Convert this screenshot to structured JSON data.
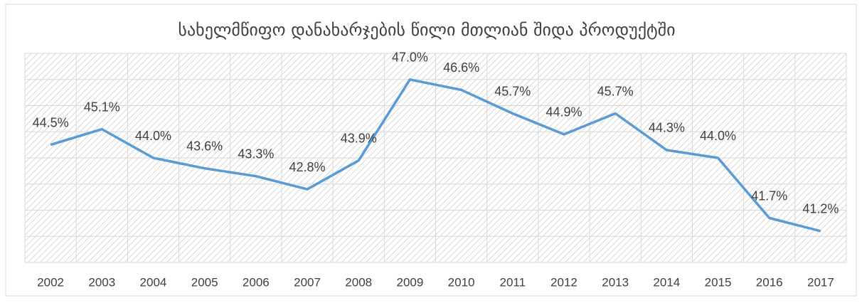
{
  "chart_data": {
    "type": "line",
    "title": "სახელმწიფო დანახარჯების წილი მთლიან შიდა პროდუქტში",
    "categories": [
      "2002",
      "2003",
      "2004",
      "2005",
      "2006",
      "2007",
      "2008",
      "2009",
      "2010",
      "2011",
      "2012",
      "2013",
      "2014",
      "2015",
      "2016",
      "2017"
    ],
    "series": [
      {
        "name": "",
        "color": "#5b9bd5",
        "values": [
          44.5,
          45.1,
          44.0,
          43.6,
          43.3,
          42.8,
          43.9,
          47.0,
          46.6,
          45.7,
          44.9,
          45.7,
          44.3,
          44.0,
          41.7,
          41.2
        ],
        "value_labels": [
          "44.5%",
          "45.1%",
          "44.0%",
          "43.6%",
          "43.3%",
          "42.8%",
          "43.9%",
          "47.0%",
          "46.6%",
          "45.7%",
          "44.9%",
          "45.7%",
          "44.3%",
          "44.0%",
          "41.7%",
          "41.2%"
        ]
      }
    ],
    "ylim": [
      40,
      48
    ],
    "yticks": [
      40,
      41,
      42,
      43,
      44,
      45,
      46,
      47,
      48
    ],
    "grid": true
  }
}
